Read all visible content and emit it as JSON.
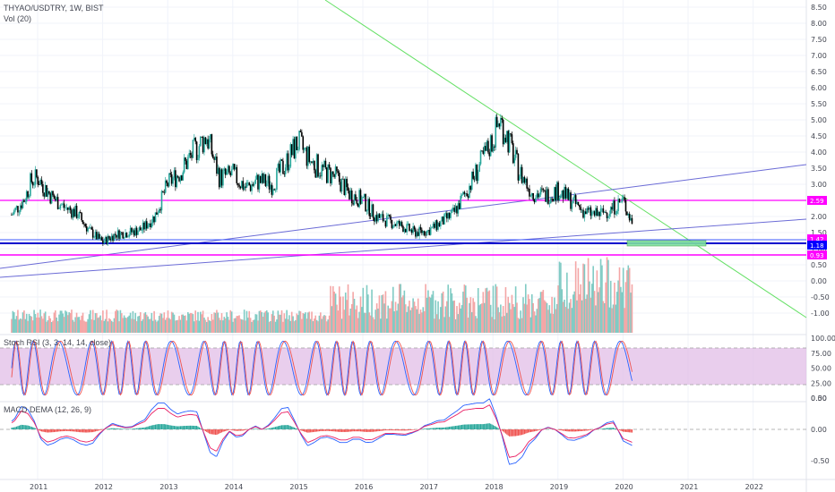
{
  "header": {
    "symbol": "THYAO/USDTRY, 1W, BIST",
    "volume": "Vol (20)"
  },
  "colors": {
    "up": "#26a69a",
    "down": "#000000",
    "vol_up": "#80cbc4",
    "vol_down": "#f4a6a6",
    "magenta": "#ff00ff",
    "blue_line": "#3d5afe",
    "trend_blue": "#6b6bd6",
    "trend_green": "#66e066",
    "stoch_k": "#2962ff",
    "stoch_d": "#ef5350",
    "stoch_band": "#e1bee7",
    "macd": "#2962ff",
    "signal": "#e91e63"
  },
  "panels": [
    {
      "id": "price",
      "yticks": [
        "8.50",
        "8.00",
        "7.50",
        "7.00",
        "6.50",
        "6.00",
        "5.50",
        "5.00",
        "4.50",
        "4.00",
        "3.50",
        "3.00",
        "2.50",
        "2.00",
        "1.50",
        "1.00",
        "0.50",
        "0.00",
        "-0.50",
        "-1.00"
      ],
      "price_tags": [
        {
          "label": "2.59",
          "color": "#ff00ff"
        },
        {
          "label": "1.42",
          "color": "#ff00ff"
        },
        {
          "label": "1.18",
          "color": "#0000ff"
        },
        {
          "label": "0.93",
          "color": "#ff00ff"
        }
      ]
    },
    {
      "id": "stoch",
      "label": "Stoch RSI (3, 3, 14, 14, close)",
      "yticks": [
        "100.00",
        "75.00",
        "50.00",
        "25.00",
        "0.00"
      ]
    },
    {
      "id": "macd",
      "label": "MACD DEMA (12, 26, 9)",
      "yticks": [
        "0.50",
        "0.00",
        "-0.50"
      ]
    }
  ],
  "xaxis": {
    "years": [
      "2011",
      "2012",
      "2013",
      "2014",
      "2015",
      "2016",
      "2017",
      "2018",
      "2019",
      "2020",
      "2021",
      "2022"
    ]
  },
  "chart_data": {
    "type": "line",
    "x_label_start": "2011",
    "series": [
      {
        "name": "THYAO/USDTRY",
        "points": [
          [
            2010.6,
            2.05
          ],
          [
            2010.8,
            2.55
          ],
          [
            2010.9,
            3.1
          ],
          [
            2011.0,
            3.2
          ],
          [
            2011.2,
            2.65
          ],
          [
            2011.4,
            2.3
          ],
          [
            2011.6,
            2.1
          ],
          [
            2011.8,
            1.55
          ],
          [
            2012.0,
            1.2
          ],
          [
            2012.2,
            1.45
          ],
          [
            2012.4,
            1.5
          ],
          [
            2012.6,
            1.6
          ],
          [
            2012.8,
            2.0
          ],
          [
            2013.0,
            3.0
          ],
          [
            2013.2,
            3.4
          ],
          [
            2013.4,
            4.0
          ],
          [
            2013.6,
            4.5
          ],
          [
            2013.8,
            3.2
          ],
          [
            2014.0,
            3.3
          ],
          [
            2014.2,
            2.9
          ],
          [
            2014.4,
            3.1
          ],
          [
            2014.6,
            3.0
          ],
          [
            2014.8,
            3.6
          ],
          [
            2015.0,
            4.3
          ],
          [
            2015.2,
            3.7
          ],
          [
            2015.4,
            3.4
          ],
          [
            2015.6,
            3.2
          ],
          [
            2015.8,
            2.7
          ],
          [
            2016.0,
            2.5
          ],
          [
            2016.2,
            2.0
          ],
          [
            2016.4,
            1.85
          ],
          [
            2016.6,
            1.7
          ],
          [
            2016.8,
            1.5
          ],
          [
            2017.0,
            1.55
          ],
          [
            2017.2,
            1.8
          ],
          [
            2017.4,
            2.1
          ],
          [
            2017.6,
            2.8
          ],
          [
            2017.8,
            3.6
          ],
          [
            2018.0,
            4.4
          ],
          [
            2018.1,
            5.0
          ],
          [
            2018.2,
            4.6
          ],
          [
            2018.4,
            3.4
          ],
          [
            2018.6,
            2.75
          ],
          [
            2018.8,
            2.65
          ],
          [
            2019.0,
            2.8
          ],
          [
            2019.2,
            2.5
          ],
          [
            2019.4,
            2.15
          ],
          [
            2019.6,
            2.05
          ],
          [
            2019.8,
            2.2
          ],
          [
            2020.0,
            2.5
          ],
          [
            2020.15,
            1.75
          ]
        ]
      }
    ],
    "xlim": [
      2010.6,
      2022.6
    ],
    "ylim": [
      -1.2,
      8.6
    ],
    "horizontal_lines": [
      2.59,
      1.42,
      1.18,
      0.93
    ]
  }
}
